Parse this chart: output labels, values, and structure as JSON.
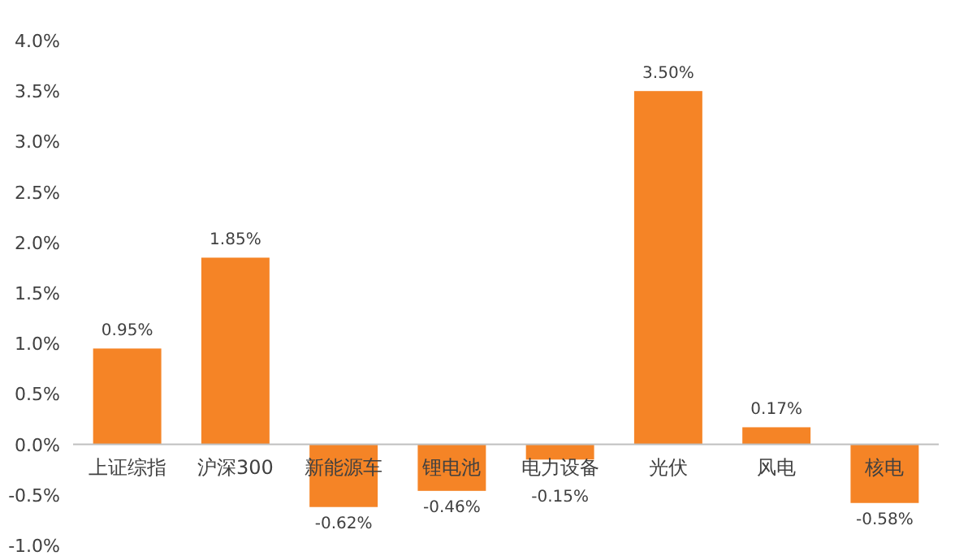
{
  "chart_data": {
    "type": "bar",
    "categories": [
      "上证综指",
      "沪深300",
      "新能源车",
      "锂电池",
      "电力设备",
      "光伏",
      "风电",
      "核电"
    ],
    "values": [
      0.95,
      1.85,
      -0.62,
      -0.46,
      -0.15,
      3.5,
      0.17,
      -0.58
    ],
    "value_labels": [
      "0.95%",
      "1.85%",
      "-0.62%",
      "-0.46%",
      "-0.15%",
      "3.50%",
      "0.17%",
      "-0.58%"
    ],
    "color": "#f58426",
    "ylim": [
      -1.0,
      4.0
    ],
    "yticks": [
      {
        "value": -1.0,
        "label": "-1.0%"
      },
      {
        "value": -0.5,
        "label": "-0.5%"
      },
      {
        "value": 0,
        "label": "0.0%"
      },
      {
        "value": 0.5,
        "label": "0.5%"
      },
      {
        "value": 1.0,
        "label": "1.0%"
      },
      {
        "value": 1.5,
        "label": "1.5%"
      },
      {
        "value": 2.0,
        "label": "2.0%"
      },
      {
        "value": 2.5,
        "label": "2.5%"
      },
      {
        "value": 3.0,
        "label": "3.0%"
      },
      {
        "value": 3.5,
        "label": "3.5%"
      },
      {
        "value": 4.0,
        "label": "4.0%"
      }
    ],
    "grid": false
  }
}
